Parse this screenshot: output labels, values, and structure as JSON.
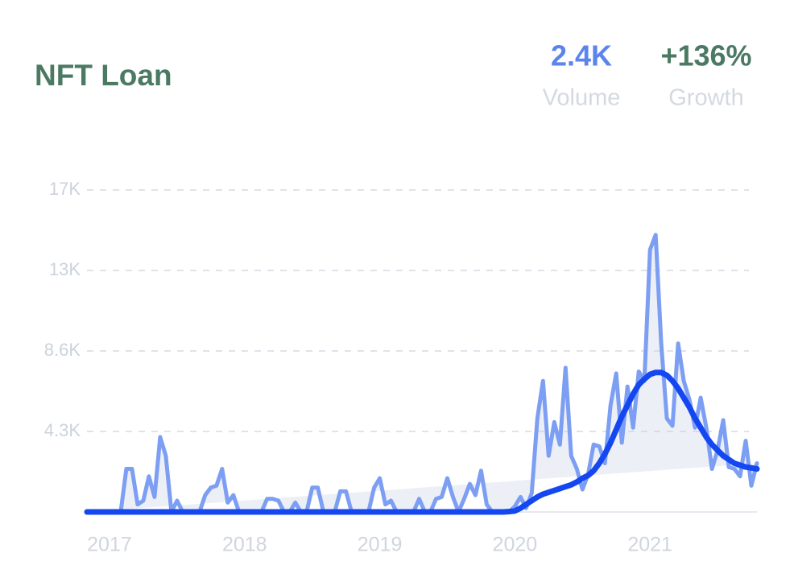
{
  "chart_data": {
    "type": "line",
    "title": "NFT Loan",
    "stats": [
      {
        "value": "2.4K",
        "label": "Volume",
        "color": "#5b84ec"
      },
      {
        "value": "+136%",
        "label": "Growth",
        "color": "#4b7a63"
      }
    ],
    "categories": [
      null,
      null,
      null,
      null,
      "2017",
      null,
      null,
      null,
      null,
      null,
      null,
      null,
      null,
      null,
      null,
      null,
      null,
      null,
      null,
      null,
      null,
      null,
      null,
      null,
      null,
      null,
      null,
      null,
      "2018",
      null,
      null,
      null,
      null,
      null,
      null,
      null,
      null,
      null,
      null,
      null,
      null,
      null,
      null,
      null,
      null,
      null,
      null,
      null,
      null,
      null,
      null,
      null,
      "2019",
      null,
      null,
      null,
      null,
      null,
      null,
      null,
      null,
      null,
      null,
      null,
      null,
      null,
      null,
      null,
      null,
      null,
      null,
      null,
      null,
      null,
      null,
      null,
      "2020",
      null,
      null,
      null,
      null,
      null,
      null,
      null,
      null,
      null,
      null,
      null,
      null,
      null,
      null,
      null,
      null,
      null,
      null,
      null,
      null,
      null,
      null,
      null,
      "2021",
      null,
      null,
      null,
      null,
      null,
      null,
      null,
      null,
      null,
      null,
      null,
      null,
      null,
      null,
      null,
      null,
      null,
      null,
      null
    ],
    "series": [
      {
        "color": "#7c9ef3",
        "values": [
          0,
          0,
          0,
          0,
          0,
          0,
          0,
          2300,
          2300,
          400,
          600,
          1900,
          800,
          4000,
          3000,
          0,
          600,
          0,
          0,
          0,
          0,
          900,
          1300,
          1400,
          2300,
          500,
          900,
          0,
          0,
          0,
          0,
          0,
          700,
          700,
          600,
          0,
          0,
          500,
          0,
          0,
          1300,
          1300,
          0,
          0,
          0,
          1100,
          1100,
          0,
          0,
          0,
          0,
          1300,
          1800,
          400,
          600,
          0,
          0,
          0,
          0,
          700,
          0,
          0,
          700,
          800,
          1800,
          800,
          0,
          700,
          1500,
          900,
          2200,
          400,
          0,
          0,
          0,
          0,
          300,
          800,
          200,
          1000,
          5000,
          7000,
          3000,
          4800,
          3600,
          7700,
          3000,
          2300,
          1200,
          2000,
          3600,
          3500,
          2600,
          5700,
          7400,
          3700,
          6700,
          4500,
          7500,
          7000,
          14000,
          14800,
          9000,
          5000,
          4600,
          9000,
          7000,
          6000,
          4500,
          6100,
          4500,
          2300,
          3300,
          4900,
          2400,
          2300,
          1900,
          3800,
          1400,
          2600
        ]
      },
      {
        "color": "#1447f0",
        "values": [
          0,
          0,
          0,
          0,
          0,
          0,
          0,
          0,
          0,
          0,
          0,
          0,
          0,
          0,
          0,
          0,
          0,
          0,
          0,
          0,
          0,
          0,
          0,
          0,
          0,
          0,
          0,
          0,
          0,
          0,
          0,
          0,
          0,
          0,
          0,
          0,
          0,
          0,
          0,
          0,
          0,
          0,
          0,
          0,
          0,
          0,
          0,
          0,
          0,
          0,
          0,
          0,
          0,
          0,
          0,
          0,
          0,
          0,
          0,
          0,
          0,
          0,
          0,
          0,
          0,
          0,
          0,
          0,
          0,
          0,
          0,
          0,
          0,
          0,
          0,
          20,
          50,
          200,
          400,
          600,
          800,
          950,
          1050,
          1150,
          1250,
          1350,
          1450,
          1600,
          1800,
          1950,
          2200,
          2600,
          3100,
          3700,
          4400,
          5100,
          5700,
          6300,
          6800,
          7100,
          7350,
          7450,
          7450,
          7300,
          7000,
          6600,
          6100,
          5600,
          5000,
          4500,
          4000,
          3600,
          3300,
          3000,
          2800,
          2600,
          2500,
          2400,
          2350,
          2300
        ]
      }
    ],
    "ylim": [
      0,
      17200
    ],
    "yticks": [
      {
        "value": 4300,
        "label": "4.3K"
      },
      {
        "value": 8600,
        "label": "8.6K"
      },
      {
        "value": 12900,
        "label": "13K"
      },
      {
        "value": 17200,
        "label": "17K"
      }
    ],
    "grid": true
  }
}
